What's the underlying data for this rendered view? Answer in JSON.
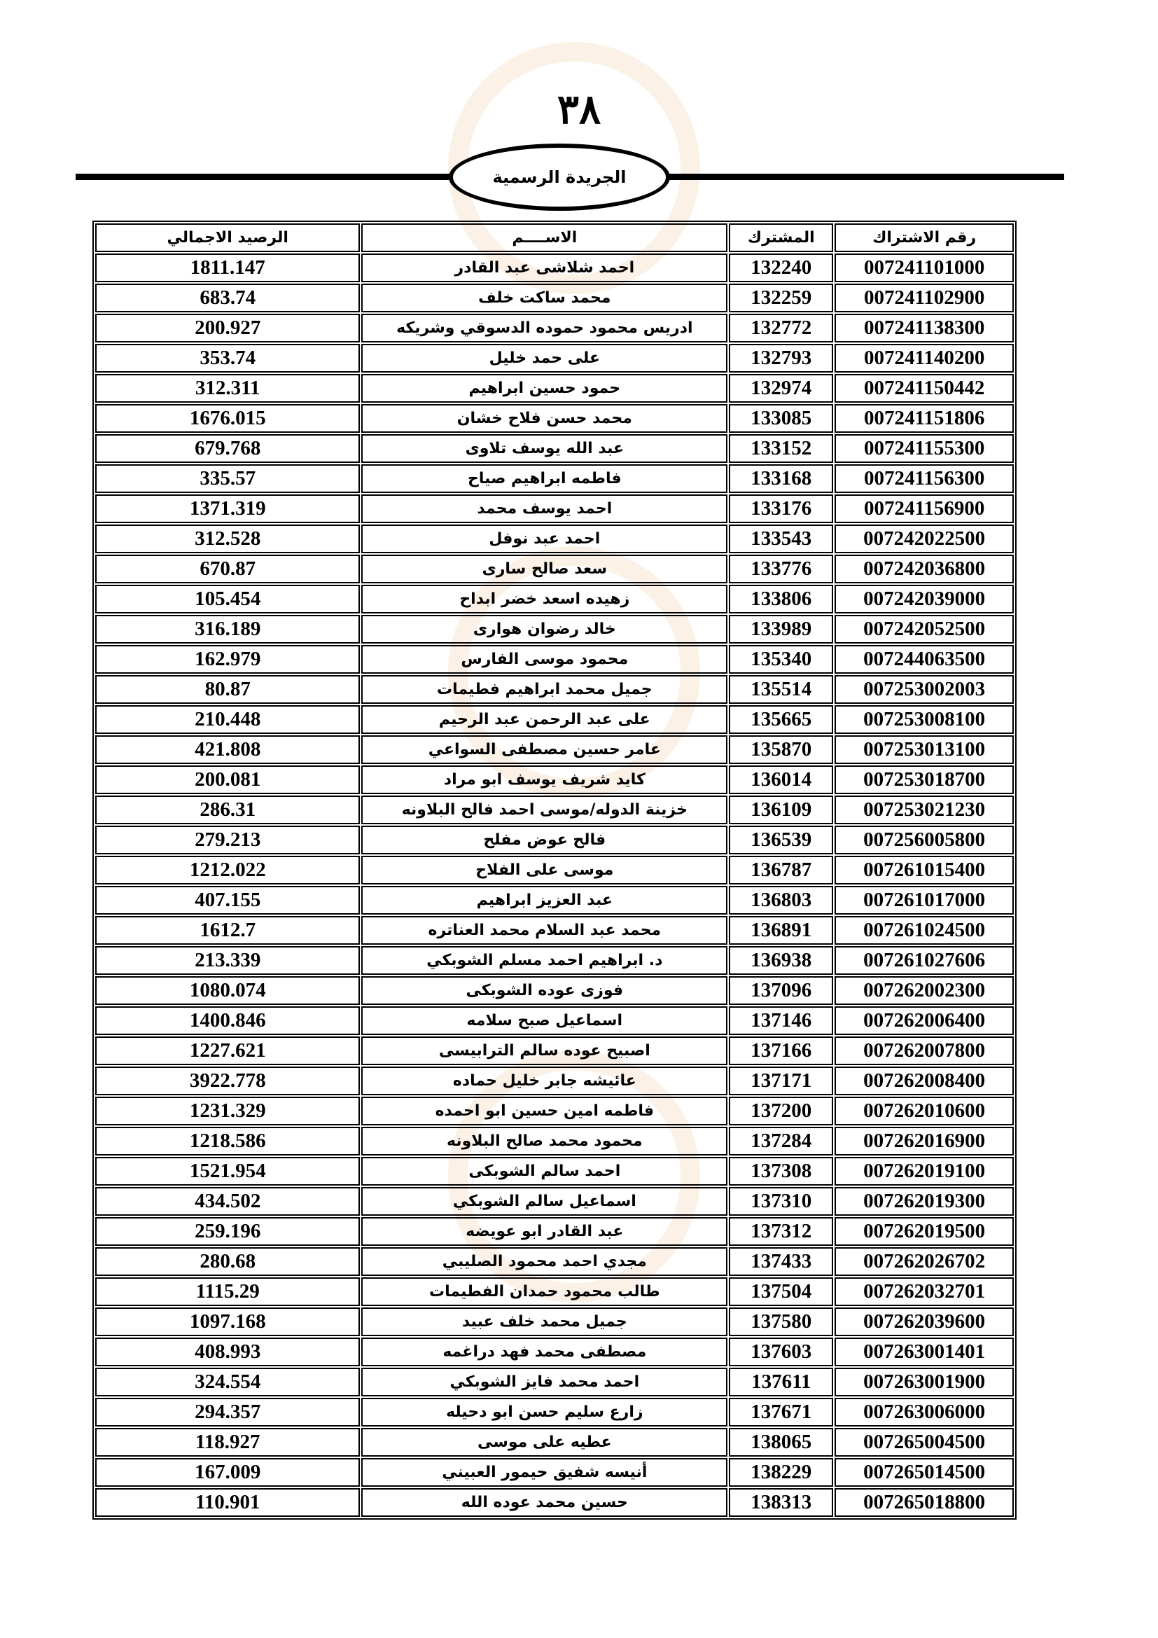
{
  "header": {
    "page_number": "٣٨",
    "title": "الجريدة الرسمية"
  },
  "table": {
    "columns": [
      "رقم الاشتراك",
      "المشترك",
      "الاســــم",
      "الرصيد الاجمالي"
    ],
    "rows": [
      [
        "007241101000",
        "132240",
        "احمد شلاشى عبد القادر",
        "1811.147"
      ],
      [
        "007241102900",
        "132259",
        "محمد ساكت  خلف",
        "683.74"
      ],
      [
        "007241138300",
        "132772",
        "ادريس محمود حموده الدسوقي وشريكه",
        "200.927"
      ],
      [
        "007241140200",
        "132793",
        "على حمد خليل",
        "353.74"
      ],
      [
        "007241150442",
        "132974",
        "حمود حسين ابراهيم",
        "312.311"
      ],
      [
        "007241151806",
        "133085",
        "محمد حسن فلاح خشان",
        "1676.015"
      ],
      [
        "007241155300",
        "133152",
        "عبد الله يوسف  تلاوى",
        "679.768"
      ],
      [
        "007241156300",
        "133168",
        "فاطمه ابراهيم صياح",
        "335.57"
      ],
      [
        "007241156900",
        "133176",
        "احمد يوسف  محمد",
        "1371.319"
      ],
      [
        "007242022500",
        "133543",
        "احمد عبد نوفل",
        "312.528"
      ],
      [
        "007242036800",
        "133776",
        "سعد صالح سارى",
        "670.87"
      ],
      [
        "007242039000",
        "133806",
        "زهيده اسعد خضر ابداح",
        "105.454"
      ],
      [
        "007242052500",
        "133989",
        "خالد رضوان هوارى",
        "316.189"
      ],
      [
        "007244063500",
        "135340",
        "محمود موسى الفارس",
        "162.979"
      ],
      [
        "007253002003",
        "135514",
        "جميل محمد ابراهيم فطيمات",
        "80.87"
      ],
      [
        "007253008100",
        "135665",
        "على عبد الرحمن عبد الرحيم",
        "210.448"
      ],
      [
        "007253013100",
        "135870",
        "عامر حسين مصطفى السواعي",
        "421.808"
      ],
      [
        "007253018700",
        "136014",
        "كايد شريف  يوسف  ابو مراد",
        "200.081"
      ],
      [
        "007253021230",
        "136109",
        "خزينة الدوله/موسى احمد فالح البلاونه",
        "286.31"
      ],
      [
        "007256005800",
        "136539",
        "فالح عوض مفلح",
        "279.213"
      ],
      [
        "007261015400",
        "136787",
        "موسى على الفلاح",
        "1212.022"
      ],
      [
        "007261017000",
        "136803",
        "عبد العزيز ابراهيم",
        "407.155"
      ],
      [
        "007261024500",
        "136891",
        "محمد عبد السلام محمد العناتره",
        "1612.7"
      ],
      [
        "007261027606",
        "136938",
        "د. ابراهيم احمد مسلم الشوبكي",
        "213.339"
      ],
      [
        "007262002300",
        "137096",
        "فوزى عوده الشوبكى",
        "1080.074"
      ],
      [
        "007262006400",
        "137146",
        "اسماعيل صبح سلامه",
        "1400.846"
      ],
      [
        "007262007800",
        "137166",
        "اصبيح عوده سالم الترابيسى",
        "1227.621"
      ],
      [
        "007262008400",
        "137171",
        "عائيشه جابر خليل حماده",
        "3922.778"
      ],
      [
        "007262010600",
        "137200",
        "فاطمه امين حسين ابو احمده",
        "1231.329"
      ],
      [
        "007262016900",
        "137284",
        "محمود محمد صالح البلاونه",
        "1218.586"
      ],
      [
        "007262019100",
        "137308",
        "احمد سالم الشوبكى",
        "1521.954"
      ],
      [
        "007262019300",
        "137310",
        "اسماعيل سالم الشوبكي",
        "434.502"
      ],
      [
        "007262019500",
        "137312",
        "عبد القادر ابو عويضه",
        "259.196"
      ],
      [
        "007262026702",
        "137433",
        "مجدي احمد محمود الصليبي",
        "280.68"
      ],
      [
        "007262032701",
        "137504",
        "طالب محمود حمدان الفطيمات",
        "1115.29"
      ],
      [
        "007262039600",
        "137580",
        "جميل محمد خلف عبيد",
        "1097.168"
      ],
      [
        "007263001401",
        "137603",
        "مصطفى محمد فهد دراغمه",
        "408.993"
      ],
      [
        "007263001900",
        "137611",
        "احمد محمد فايز الشوبكي",
        "324.554"
      ],
      [
        "007263006000",
        "137671",
        "زارع سليم حسن ابو دحيله",
        "294.357"
      ],
      [
        "007265004500",
        "138065",
        "عطيه على موسى",
        "118.927"
      ],
      [
        "007265014500",
        "138229",
        "أنيسه شفيق حيمور العبيني",
        "167.009"
      ],
      [
        "007265018800",
        "138313",
        "حسين محمد عوده الله",
        "110.901"
      ]
    ]
  }
}
